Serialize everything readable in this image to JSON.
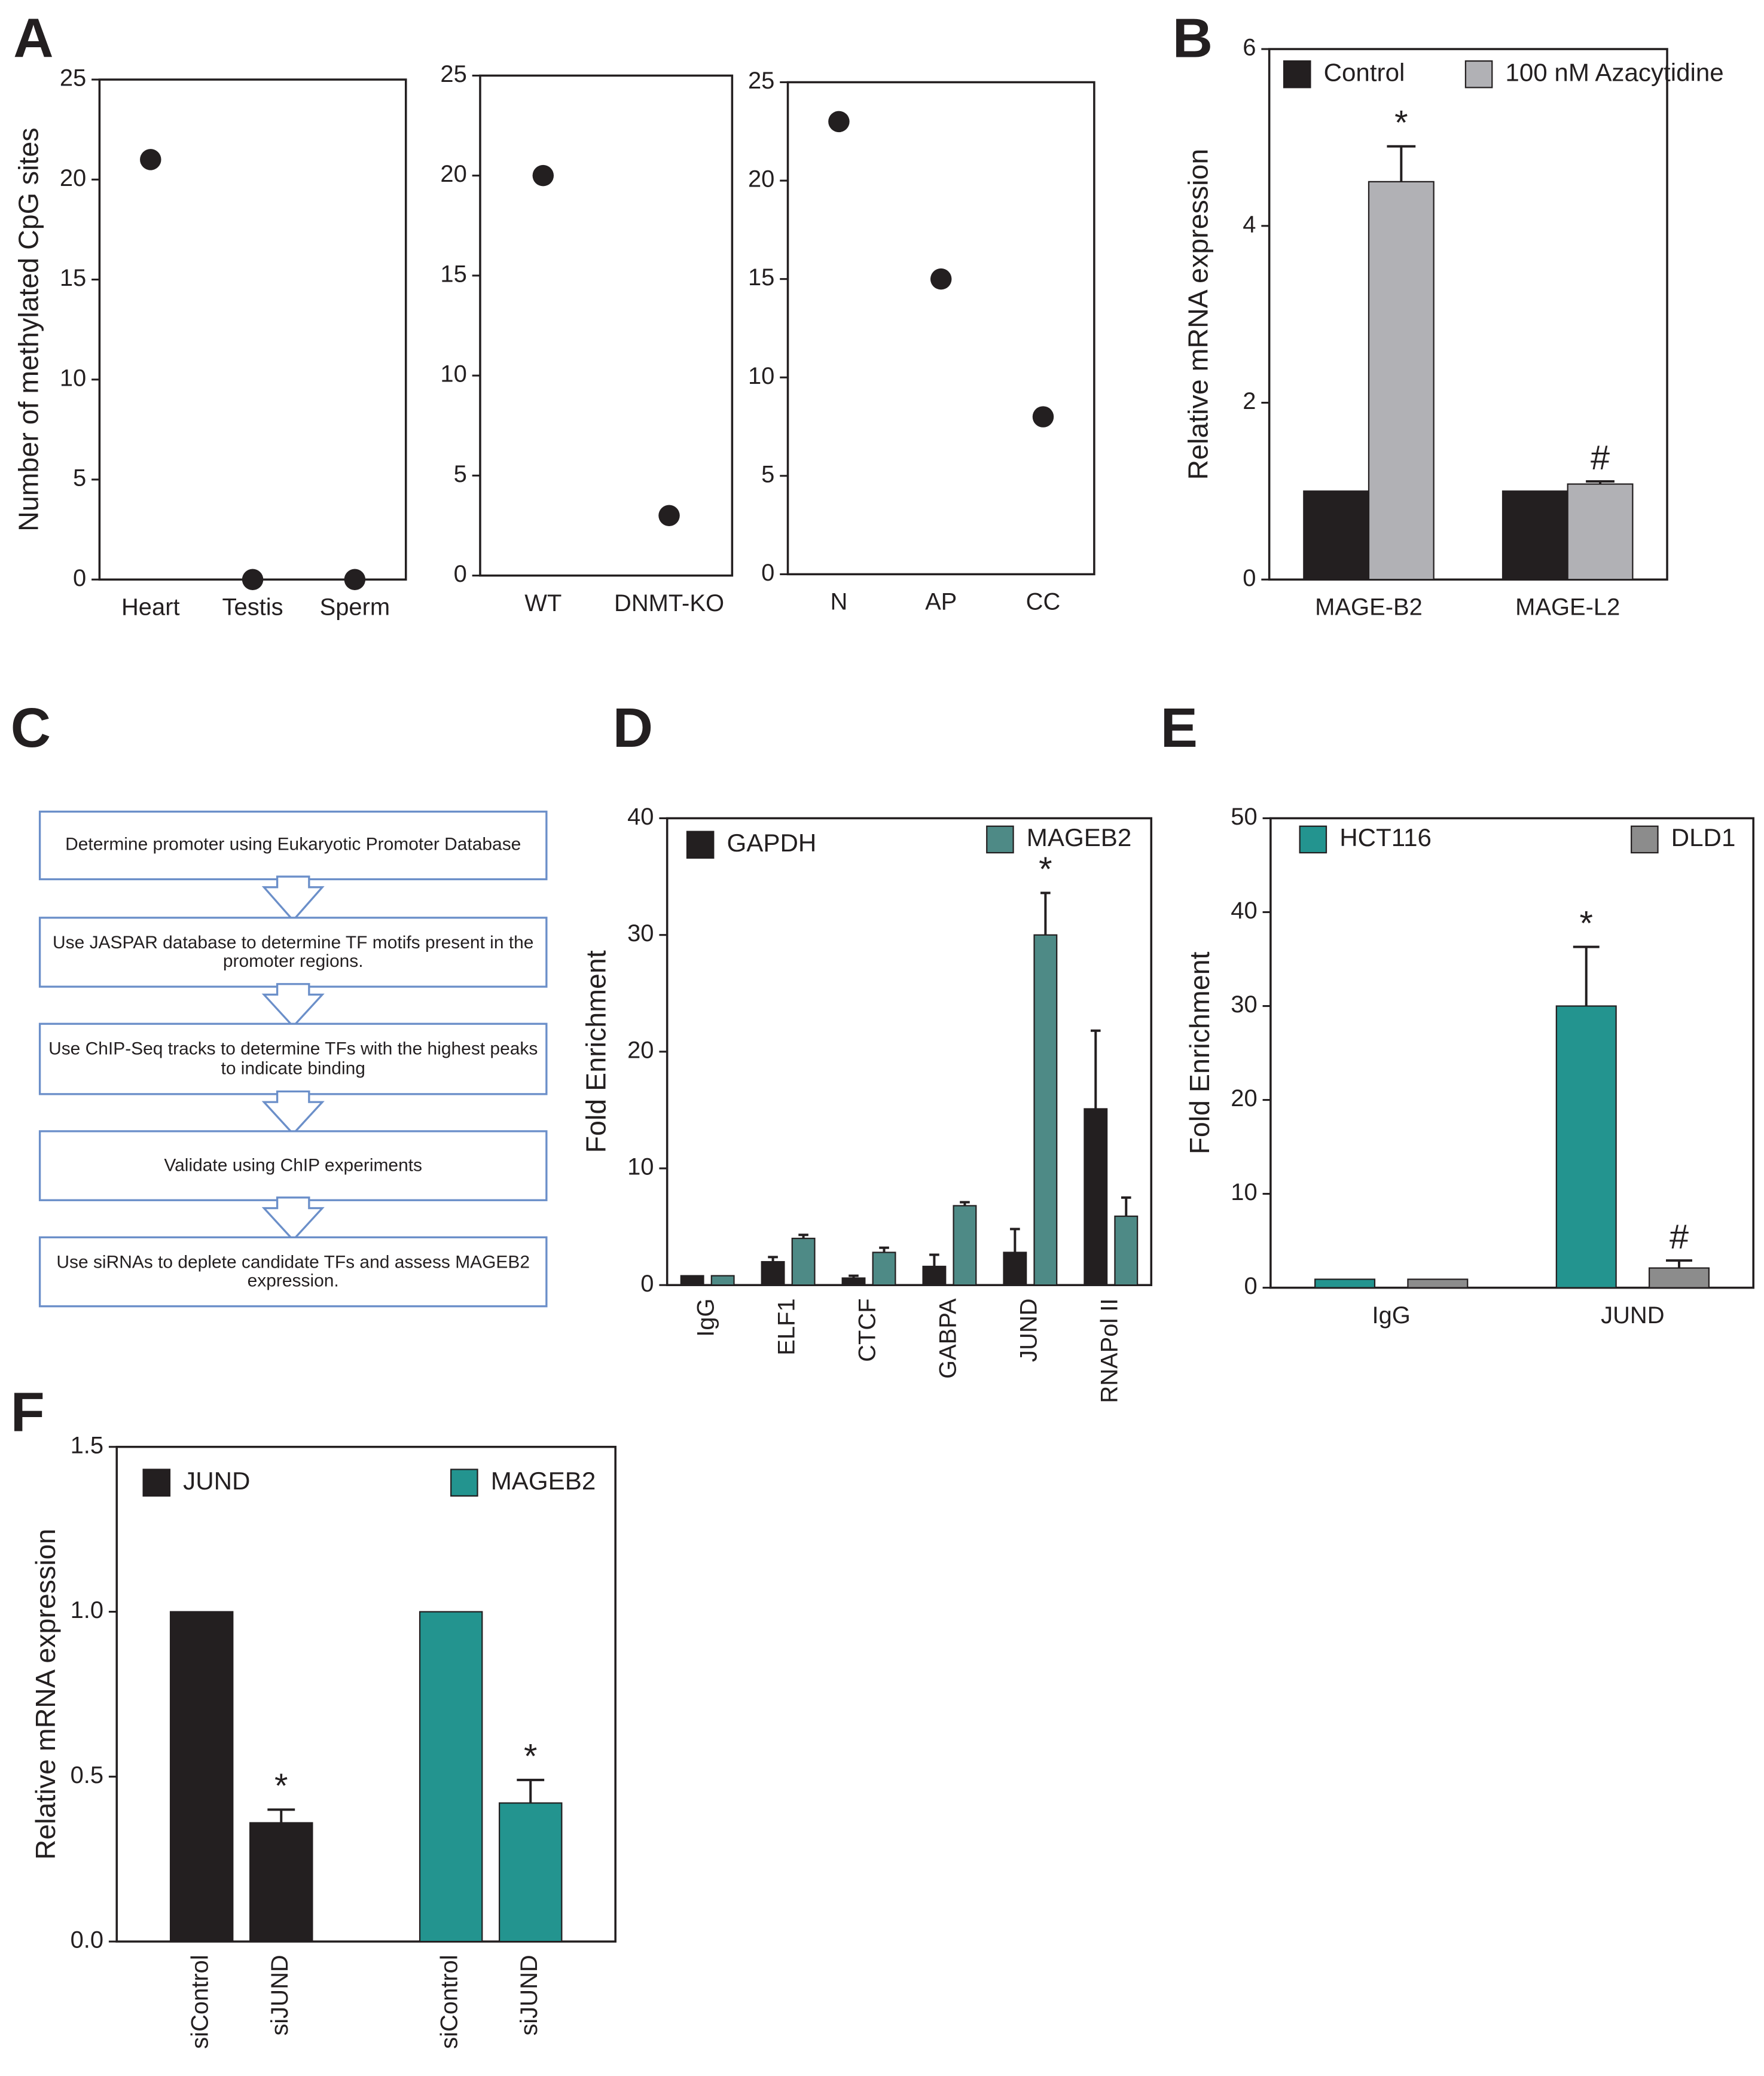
{
  "chart_data": [
    {
      "type": "scatter",
      "label": "A",
      "ylabel": "Number of methylated CpG sites",
      "categories": [
        "Heart",
        "Testis",
        "Sperm"
      ],
      "values": [
        21,
        0,
        0
      ],
      "color": "#231f20",
      "ylim": [
        0,
        25
      ],
      "yticks": [
        0,
        5,
        10,
        15,
        20,
        25
      ],
      "grid": false
    },
    {
      "type": "scatter",
      "categories": [
        "WT",
        "DNMT-KO"
      ],
      "values": [
        20,
        3
      ],
      "color": "#231f20",
      "ylim": [
        0,
        25
      ],
      "yticks": [
        0,
        5,
        10,
        15,
        20,
        25
      ],
      "grid": false
    },
    {
      "type": "scatter",
      "categories": [
        "N",
        "AP",
        "CC"
      ],
      "values": [
        23,
        15,
        8
      ],
      "color": "#231f20",
      "ylim": [
        0,
        25
      ],
      "yticks": [
        0,
        5,
        10,
        15,
        20,
        25
      ],
      "grid": false
    },
    {
      "type": "bar",
      "label": "B",
      "ylabel": "Relative mRNA expression",
      "categories": [
        "MAGE-B2",
        "MAGE-L2"
      ],
      "series": [
        {
          "name": "Control",
          "color": "#231f20",
          "values": [
            1,
            1
          ]
        },
        {
          "name": "100 nM Azacytidine",
          "color": "#b1b1b5",
          "values": [
            4.5,
            1.08
          ],
          "errors": [
            0.4,
            0.03
          ]
        }
      ],
      "annotations": [
        {
          "text": "*",
          "series": "100 nM Azacytidine",
          "category": "MAGE-B2"
        },
        {
          "text": "#",
          "series": "100 nM Azacytidine",
          "category": "MAGE-L2"
        }
      ],
      "ylim": [
        0,
        6
      ],
      "yticks": [
        0,
        2,
        4,
        6
      ],
      "grid": false
    },
    {
      "type": "bar",
      "label": "D",
      "ylabel": "Fold Enrichment",
      "categories": [
        "IgG",
        "ELF1",
        "CTCF",
        "GABPA",
        "JUND",
        "RNAPol II"
      ],
      "series": [
        {
          "name": "GAPDH",
          "color": "#231f20",
          "values": [
            0.8,
            2,
            0.6,
            1.6,
            2.8,
            15.1
          ],
          "errors": [
            0,
            0.4,
            0.2,
            1,
            2,
            6.7
          ]
        },
        {
          "name": "MAGEB2",
          "color": "#4e8a86",
          "values": [
            0.8,
            4,
            2.8,
            6.8,
            30,
            5.9
          ],
          "errors": [
            0,
            0.3,
            0.4,
            0.3,
            3.6,
            1.6
          ]
        }
      ],
      "annotations": [
        {
          "text": "*",
          "series": "MAGEB2",
          "category": "JUND"
        }
      ],
      "ylim": [
        0,
        40
      ],
      "yticks": [
        0,
        10,
        20,
        30,
        40
      ],
      "grid": false
    },
    {
      "type": "bar",
      "label": "E",
      "ylabel": "Fold Enrichment",
      "categories": [
        "IgG",
        "JUND"
      ],
      "series": [
        {
          "name": "HCT116",
          "color": "#23948f",
          "values": [
            0.9,
            30
          ],
          "errors": [
            0,
            6.3
          ]
        },
        {
          "name": "DLD1",
          "color": "#8c8c8c",
          "values": [
            0.9,
            2.1
          ],
          "errors": [
            0,
            0.8
          ]
        }
      ],
      "annotations": [
        {
          "text": "*",
          "series": "HCT116",
          "category": "JUND"
        },
        {
          "text": "#",
          "series": "DLD1",
          "category": "JUND"
        }
      ],
      "ylim": [
        0,
        50
      ],
      "yticks": [
        0,
        10,
        20,
        30,
        40,
        50
      ],
      "grid": false
    },
    {
      "type": "bar",
      "label": "F",
      "ylabel": "Relative mRNA expression",
      "group_by": "series",
      "categories": [
        "siControl",
        "siJUND"
      ],
      "series": [
        {
          "name": "JUND",
          "color": "#231f20",
          "values": [
            1,
            0.36
          ],
          "errors": [
            0,
            0.04
          ]
        },
        {
          "name": "MAGEB2",
          "color": "#23948f",
          "values": [
            1,
            0.42
          ],
          "errors": [
            0,
            0.07
          ]
        }
      ],
      "annotations": [
        {
          "text": "*",
          "series": "JUND",
          "category": "siJUND"
        },
        {
          "text": "*",
          "series": "MAGEB2",
          "category": "siJUND"
        }
      ],
      "ylim": [
        0,
        1.5
      ],
      "yticks": [
        {
          "value": 0,
          "label": "0.0"
        },
        0.5,
        {
          "value": 1,
          "label": "1.0"
        },
        1.5
      ],
      "grid": false
    }
  ],
  "flowchart": {
    "label": "C",
    "steps": [
      "Determine promoter using Eukaryotic Promoter Database",
      "Use JASPAR database to determine TF motifs present in the promoter regions.",
      "Use ChIP-Seq tracks to determine TFs with the highest peaks to indicate binding",
      "Validate using ChIP experiments",
      "Use siRNAs to deplete candidate TFs and assess MAGEB2 expression."
    ]
  }
}
